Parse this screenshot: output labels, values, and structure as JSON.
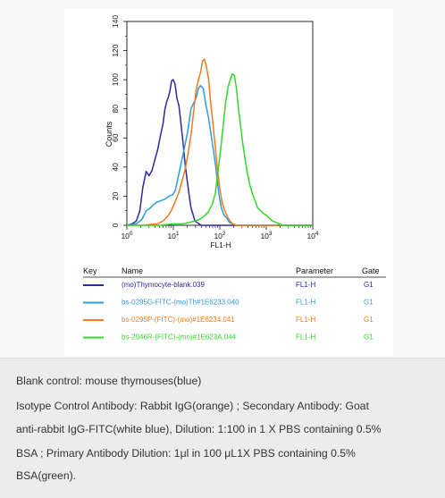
{
  "chart_data": {
    "type": "line",
    "xlabel": "FL1-H",
    "ylabel": "Counts",
    "x_scale": "log",
    "xlim": [
      1,
      10000
    ],
    "ylim": [
      0,
      140
    ],
    "x_ticks": [
      {
        "value": 1,
        "base": "10",
        "exp": "0"
      },
      {
        "value": 10,
        "base": "10",
        "exp": "1"
      },
      {
        "value": 100,
        "base": "10",
        "exp": "2"
      },
      {
        "value": 1000,
        "base": "10",
        "exp": "3"
      },
      {
        "value": 10000,
        "base": "10",
        "exp": "4"
      }
    ],
    "y_ticks": [
      0,
      20,
      40,
      60,
      80,
      100,
      120,
      140
    ],
    "series": [
      {
        "name": "(mo)Thymocyte-blank.039",
        "color": "#2b2b9e",
        "points": [
          [
            1.0,
            0
          ],
          [
            1.3,
            1
          ],
          [
            1.6,
            3
          ],
          [
            1.9,
            10
          ],
          [
            2.2,
            26
          ],
          [
            2.6,
            37
          ],
          [
            3.0,
            34
          ],
          [
            3.5,
            38
          ],
          [
            4.0,
            45
          ],
          [
            4.6,
            52
          ],
          [
            5.3,
            62
          ],
          [
            6.0,
            70
          ],
          [
            6.6,
            80
          ],
          [
            7.2,
            85
          ],
          [
            7.8,
            88
          ],
          [
            8.4,
            92
          ],
          [
            9.1,
            99
          ],
          [
            9.9,
            100
          ],
          [
            10.9,
            97
          ],
          [
            12,
            87
          ],
          [
            13.2,
            82
          ],
          [
            14.6,
            70
          ],
          [
            16.1,
            57
          ],
          [
            17.8,
            43
          ],
          [
            19.6,
            32
          ],
          [
            21.6,
            22
          ],
          [
            23.9,
            12
          ],
          [
            26.3,
            8
          ],
          [
            29.1,
            3
          ],
          [
            32,
            2
          ],
          [
            36,
            1
          ],
          [
            40,
            0
          ],
          [
            60,
            0
          ],
          [
            10000,
            0
          ]
        ]
      },
      {
        "name": "bs-0295G-FITC-(mo)Th#1E6233.040",
        "color": "#2e9bdc",
        "points": [
          [
            1.0,
            0
          ],
          [
            1.6,
            1
          ],
          [
            2.1,
            4
          ],
          [
            2.6,
            10
          ],
          [
            3.2,
            12
          ],
          [
            3.7,
            14
          ],
          [
            4.5,
            16
          ],
          [
            5.5,
            17
          ],
          [
            6.6,
            18
          ],
          [
            8.0,
            20
          ],
          [
            9.7,
            21
          ],
          [
            11,
            24
          ],
          [
            12.5,
            32
          ],
          [
            14.6,
            42
          ],
          [
            17.8,
            55
          ],
          [
            20.5,
            65
          ],
          [
            23.9,
            80
          ],
          [
            27.3,
            84
          ],
          [
            30.5,
            87
          ],
          [
            34.6,
            94
          ],
          [
            38.4,
            96
          ],
          [
            44,
            94
          ],
          [
            50,
            83
          ],
          [
            57,
            74
          ],
          [
            65,
            62
          ],
          [
            74,
            50
          ],
          [
            84,
            37
          ],
          [
            95,
            22
          ],
          [
            108,
            12
          ],
          [
            123,
            7
          ],
          [
            140,
            5
          ],
          [
            160,
            2
          ],
          [
            190,
            1
          ],
          [
            230,
            0
          ],
          [
            10000,
            0
          ]
        ]
      },
      {
        "name": "bs-0295P-(FITC)-(mo)#1E6234.041",
        "color": "#ee7a22",
        "points": [
          [
            1.0,
            0
          ],
          [
            2.0,
            0
          ],
          [
            4.5,
            1
          ],
          [
            6.0,
            3
          ],
          [
            7.5,
            6
          ],
          [
            9.0,
            10
          ],
          [
            10.9,
            16
          ],
          [
            12.9,
            22
          ],
          [
            15.2,
            30
          ],
          [
            17.8,
            38
          ],
          [
            20.5,
            48
          ],
          [
            23.9,
            62
          ],
          [
            27.3,
            78
          ],
          [
            30.5,
            92
          ],
          [
            34.6,
            100
          ],
          [
            38.4,
            105
          ],
          [
            42.6,
            113
          ],
          [
            46.8,
            114
          ],
          [
            51.5,
            109
          ],
          [
            57,
            101
          ],
          [
            63,
            85
          ],
          [
            70,
            72
          ],
          [
            79,
            55
          ],
          [
            89,
            38
          ],
          [
            100,
            25
          ],
          [
            113,
            15
          ],
          [
            128,
            10
          ],
          [
            145,
            6
          ],
          [
            165,
            3
          ],
          [
            190,
            1
          ],
          [
            230,
            0
          ],
          [
            10000,
            0
          ]
        ]
      },
      {
        "name": "bs-2946R-(FITC)-(mo)#1E623A.044",
        "color": "#35d62a",
        "points": [
          [
            1.0,
            0
          ],
          [
            5.0,
            0
          ],
          [
            10,
            1
          ],
          [
            16,
            1
          ],
          [
            22,
            2
          ],
          [
            29,
            3
          ],
          [
            36,
            4
          ],
          [
            45,
            6
          ],
          [
            56,
            9
          ],
          [
            68,
            14
          ],
          [
            80,
            22
          ],
          [
            92,
            38
          ],
          [
            104,
            52
          ],
          [
            118,
            68
          ],
          [
            133,
            84
          ],
          [
            150,
            95
          ],
          [
            168,
            100
          ],
          [
            185,
            104
          ],
          [
            205,
            103
          ],
          [
            228,
            94
          ],
          [
            252,
            80
          ],
          [
            280,
            68
          ],
          [
            312,
            56
          ],
          [
            348,
            46
          ],
          [
            390,
            36
          ],
          [
            440,
            28
          ],
          [
            500,
            22
          ],
          [
            570,
            17
          ],
          [
            650,
            12
          ],
          [
            750,
            10
          ],
          [
            870,
            8
          ],
          [
            1000,
            7
          ],
          [
            1150,
            5
          ],
          [
            1350,
            3
          ],
          [
            1600,
            2
          ],
          [
            1900,
            1
          ],
          [
            2300,
            0
          ],
          [
            10000,
            0
          ]
        ]
      }
    ]
  },
  "legend_table": {
    "headers": {
      "key": "Key",
      "name": "Name",
      "parameter": "Parameter",
      "gate": "Gate"
    },
    "rows": [
      {
        "name": "(mo)Thymocyte-blank.039",
        "parameter": "FL1-H",
        "gate": "G1",
        "color": "#2b2b9e"
      },
      {
        "name": "bs-0295G-FITC-(mo)Th#1E6233.040",
        "parameter": "FL1-H",
        "gate": "G1",
        "color": "#2e9bdc"
      },
      {
        "name": "bs-0295P-(FITC)-(mo)#1E6234.041",
        "parameter": "FL1-H",
        "gate": "G1",
        "color": "#ee7a22"
      },
      {
        "name": "bs-2946R-(FITC)-(mo)#1E623A.044",
        "parameter": "FL1-H",
        "gate": "G1",
        "color": "#35d62a"
      }
    ]
  },
  "caption": {
    "lines": [
      "Blank control: mouse thymouses(blue)",
      "Isotype Control Antibody: Rabbit IgG(orange) ; Secondary Antibody: Goat",
      "anti-rabbit IgG-FITC(white blue), Dilution: 1:100 in 1 X PBS containing 0.5%",
      "BSA ; Primary Antibody Dilution: 1μl in 100 μL1X PBS containing 0.5%",
      "BSA(green)."
    ]
  }
}
